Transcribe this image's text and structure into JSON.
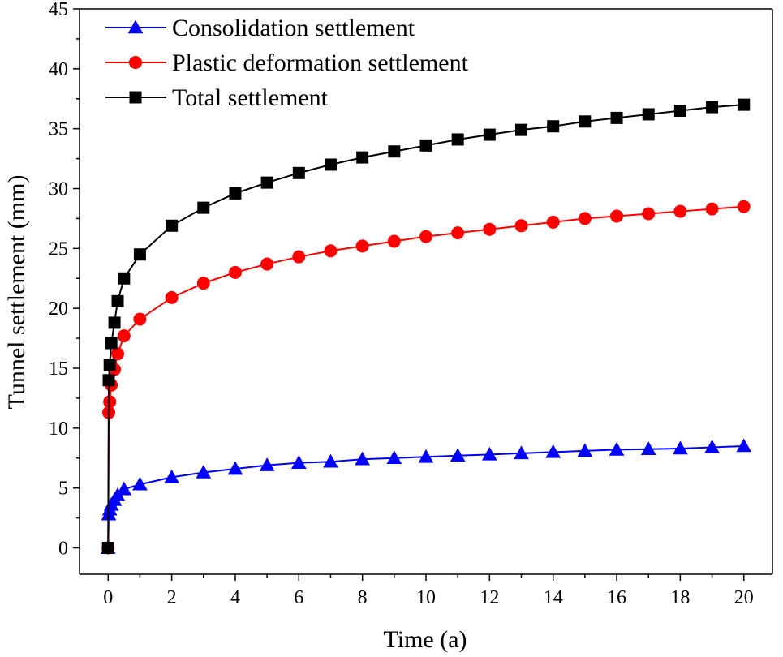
{
  "chart_data": {
    "type": "line",
    "title": "",
    "xlabel": "Time (a)",
    "ylabel": "Tunnel settlement (mm)",
    "xlim": [
      -0.9,
      20.9
    ],
    "ylim": [
      -2.2,
      45
    ],
    "xticks": [
      0,
      2,
      4,
      6,
      8,
      10,
      12,
      14,
      16,
      18,
      20
    ],
    "yticks": [
      0,
      5,
      10,
      15,
      20,
      25,
      30,
      35,
      40,
      45
    ],
    "legend_position": "top-left",
    "series": [
      {
        "name": "Consolidation settlement",
        "color": "#0000ff",
        "marker": "triangle",
        "x": [
          0,
          0.02,
          0.05,
          0.1,
          0.2,
          0.3,
          0.5,
          1,
          2,
          3,
          4,
          5,
          6,
          7,
          8,
          9,
          10,
          11,
          12,
          13,
          14,
          15,
          16,
          17,
          18,
          19,
          20
        ],
        "y": [
          0,
          2.8,
          3.2,
          3.6,
          4.0,
          4.4,
          4.9,
          5.3,
          5.9,
          6.3,
          6.6,
          6.9,
          7.1,
          7.2,
          7.4,
          7.5,
          7.6,
          7.7,
          7.8,
          7.9,
          8.0,
          8.1,
          8.2,
          8.25,
          8.3,
          8.4,
          8.5
        ]
      },
      {
        "name": "Plastic deformation settlement",
        "color": "#ff0000",
        "marker": "circle",
        "x": [
          0,
          0.02,
          0.05,
          0.1,
          0.2,
          0.3,
          0.5,
          1,
          2,
          3,
          4,
          5,
          6,
          7,
          8,
          9,
          10,
          11,
          12,
          13,
          14,
          15,
          16,
          17,
          18,
          19,
          20
        ],
        "y": [
          0,
          11.3,
          12.2,
          13.6,
          14.9,
          16.2,
          17.7,
          19.1,
          20.9,
          22.1,
          23.0,
          23.7,
          24.3,
          24.8,
          25.2,
          25.6,
          26.0,
          26.3,
          26.6,
          26.9,
          27.2,
          27.5,
          27.7,
          27.9,
          28.1,
          28.3,
          28.5
        ]
      },
      {
        "name": "Total settlement",
        "color": "#000000",
        "marker": "square",
        "x": [
          0,
          0.02,
          0.05,
          0.1,
          0.2,
          0.3,
          0.5,
          1,
          2,
          3,
          4,
          5,
          6,
          7,
          8,
          9,
          10,
          11,
          12,
          13,
          14,
          15,
          16,
          17,
          18,
          19,
          20
        ],
        "y": [
          0,
          14.0,
          15.3,
          17.1,
          18.8,
          20.6,
          22.5,
          24.5,
          26.9,
          28.4,
          29.6,
          30.5,
          31.3,
          32.0,
          32.6,
          33.1,
          33.6,
          34.1,
          34.5,
          34.9,
          35.2,
          35.6,
          35.9,
          36.2,
          36.5,
          36.8,
          37.0
        ]
      }
    ]
  }
}
